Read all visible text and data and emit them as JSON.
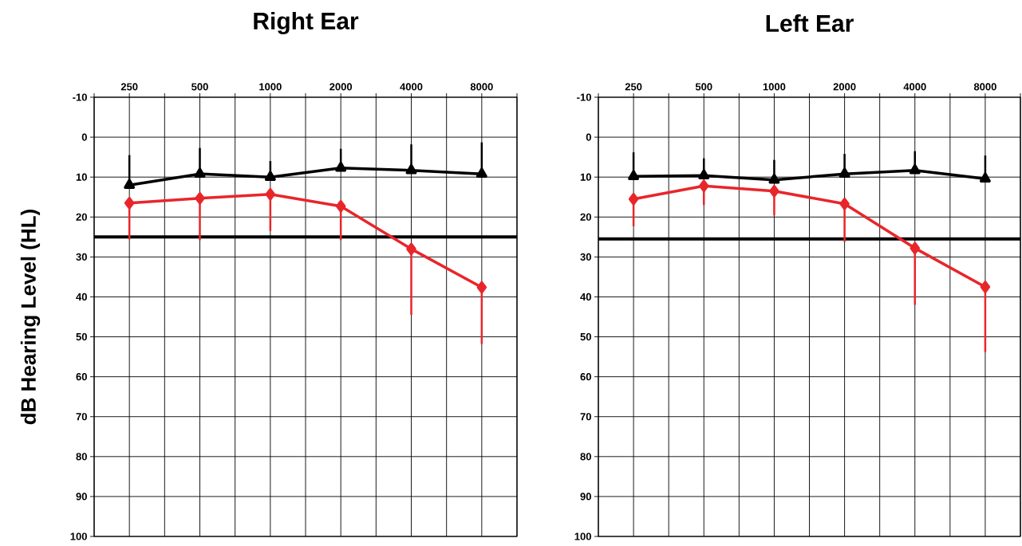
{
  "chart_data": [
    {
      "type": "line",
      "title": "Right Ear",
      "ylabel": "dB Hearing Level (HL)",
      "categories": [
        "250",
        "500",
        "1000",
        "2000",
        "4000",
        "8000"
      ],
      "ylim": [
        100,
        -10
      ],
      "yticks": [
        -10,
        0,
        10,
        20,
        30,
        40,
        50,
        60,
        70,
        80,
        90,
        100
      ],
      "grid": true,
      "ref_lines": [
        {
          "axis": "y",
          "value": 25,
          "color": "#000000"
        }
      ],
      "series": [
        {
          "color": "#000000",
          "marker": "triangle",
          "values": [
            12.0,
            9.2,
            10,
            7.7,
            8.3,
            9.2
          ],
          "errors": [
            [
              4.5,
              12.0
            ],
            [
              2.7,
              9.2
            ],
            [
              6,
              10
            ],
            [
              2.9,
              7.7
            ],
            [
              1.8,
              8.3
            ],
            [
              1.3,
              9.2
            ]
          ]
        },
        {
          "color": "#e8262a",
          "marker": "diamond",
          "values": [
            16.5,
            15.3,
            14.3,
            17.3,
            28,
            37.6
          ],
          "errors": [
            [
              16.5,
              25.6
            ],
            [
              15.3,
              25.8
            ],
            [
              14.3,
              23.5
            ],
            [
              17.3,
              25.8
            ],
            [
              28,
              44.5
            ],
            [
              37.6,
              51.8
            ]
          ]
        }
      ]
    },
    {
      "type": "line",
      "title": "Left Ear",
      "categories": [
        "250",
        "500",
        "1000",
        "2000",
        "4000",
        "8000"
      ],
      "ylim": [
        100,
        -10
      ],
      "yticks": [
        -10,
        0,
        10,
        20,
        30,
        40,
        50,
        60,
        70,
        80,
        90,
        100
      ],
      "grid": true,
      "ref_lines": [
        {
          "axis": "y",
          "value": 25.5,
          "color": "#000000"
        }
      ],
      "series": [
        {
          "color": "#000000",
          "marker": "triangle",
          "values": [
            9.8,
            9.6,
            10.7,
            9.2,
            8.3,
            10.4
          ],
          "errors": [
            [
              3.8,
              9.8
            ],
            [
              5.3,
              9.6
            ],
            [
              5.7,
              10.7
            ],
            [
              4.2,
              9.2
            ],
            [
              3.5,
              8.3
            ],
            [
              4.6,
              10.4
            ]
          ]
        },
        {
          "color": "#e8262a",
          "marker": "diamond",
          "values": [
            15.5,
            12.2,
            13.5,
            16.7,
            27.8,
            37.5
          ],
          "errors": [
            [
              15.5,
              22.3
            ],
            [
              12.2,
              17
            ],
            [
              13.5,
              19.6
            ],
            [
              16.7,
              26.2
            ],
            [
              27.8,
              42
            ],
            [
              37.5,
              53.8
            ]
          ]
        }
      ]
    }
  ]
}
